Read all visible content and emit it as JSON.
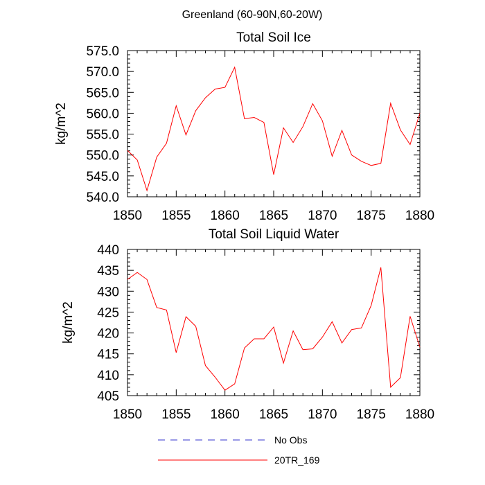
{
  "figure": {
    "suptitle": "Greenland (60-90N,60-20W)"
  },
  "legend": {
    "items": [
      {
        "label": "No Obs",
        "color": "#3333cc",
        "dash": true
      },
      {
        "label": "20TR_169",
        "color": "#ff0000",
        "dash": false
      }
    ]
  },
  "chart_data": [
    {
      "type": "line",
      "title": "Total Soil Ice",
      "xlabel": "",
      "ylabel": "kg/m^2",
      "xlim": [
        1850,
        1880
      ],
      "ylim": [
        540,
        575
      ],
      "x_ticks": [
        1850,
        1855,
        1860,
        1865,
        1870,
        1875,
        1880
      ],
      "x_tick_labels": [
        "1850",
        "1855",
        "1860",
        "1865",
        "1870",
        "1875",
        "1880"
      ],
      "y_ticks": [
        540,
        545,
        550,
        555,
        560,
        565,
        570,
        575
      ],
      "y_tick_labels": [
        "540.0",
        "545.0",
        "550.0",
        "555.0",
        "560.0",
        "565.0",
        "570.0",
        "575.0"
      ],
      "series": [
        {
          "name": "20TR_169",
          "color": "#ff0000",
          "x": [
            1850,
            1851,
            1852,
            1853,
            1854,
            1855,
            1856,
            1857,
            1858,
            1859,
            1860,
            1861,
            1862,
            1863,
            1864,
            1865,
            1866,
            1867,
            1868,
            1869,
            1870,
            1871,
            1872,
            1873,
            1874,
            1875,
            1876,
            1877,
            1878,
            1879,
            1880
          ],
          "values": [
            551.1,
            548.8,
            541.5,
            549.5,
            552.8,
            561.8,
            554.8,
            560.6,
            563.7,
            565.8,
            566.2,
            571.0,
            558.7,
            559.0,
            557.8,
            545.3,
            556.5,
            553.0,
            556.8,
            562.3,
            558.2,
            549.7,
            555.9,
            550.0,
            548.5,
            547.5,
            548.0,
            562.4,
            556.0,
            552.5,
            560.0
          ]
        }
      ]
    },
    {
      "type": "line",
      "title": "Total Soil Liquid Water",
      "xlabel": "",
      "ylabel": "kg/m^2",
      "xlim": [
        1850,
        1880
      ],
      "ylim": [
        405,
        440
      ],
      "x_ticks": [
        1850,
        1855,
        1860,
        1865,
        1870,
        1875,
        1880
      ],
      "x_tick_labels": [
        "1850",
        "1855",
        "1860",
        "1865",
        "1870",
        "1875",
        "1880"
      ],
      "y_ticks": [
        405,
        410,
        415,
        420,
        425,
        430,
        435,
        440
      ],
      "y_tick_labels": [
        "405",
        "410",
        "415",
        "420",
        "425",
        "430",
        "435",
        "440"
      ],
      "series": [
        {
          "name": "20TR_169",
          "color": "#ff0000",
          "x": [
            1850,
            1851,
            1852,
            1853,
            1854,
            1855,
            1856,
            1857,
            1858,
            1859,
            1860,
            1861,
            1862,
            1863,
            1864,
            1865,
            1866,
            1867,
            1868,
            1869,
            1870,
            1871,
            1872,
            1873,
            1874,
            1875,
            1876,
            1877,
            1878,
            1879,
            1880
          ],
          "values": [
            432.8,
            434.5,
            432.8,
            426.1,
            425.5,
            415.3,
            423.9,
            421.6,
            412.2,
            409.4,
            406.3,
            407.8,
            416.4,
            418.6,
            418.6,
            421.4,
            412.8,
            420.5,
            416.0,
            416.2,
            419.0,
            422.7,
            417.6,
            420.8,
            421.2,
            426.6,
            435.7,
            407.0,
            409.3,
            424.0,
            416.6
          ]
        }
      ]
    }
  ]
}
